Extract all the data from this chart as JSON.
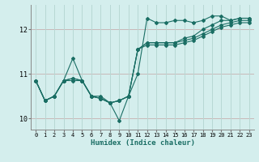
{
  "xlabel": "Humidex (Indice chaleur)",
  "background_color": "#d4eeed",
  "grid_color_h": "#c8b8b8",
  "grid_color_v": "#b8d8d4",
  "line_color": "#1a6e64",
  "xlim": [
    -0.5,
    23.5
  ],
  "ylim": [
    9.75,
    12.55
  ],
  "yticks": [
    10,
    11,
    12
  ],
  "xticks": [
    0,
    1,
    2,
    3,
    4,
    5,
    6,
    7,
    8,
    9,
    10,
    11,
    12,
    13,
    14,
    15,
    16,
    17,
    18,
    19,
    20,
    21,
    22,
    23
  ],
  "lines": [
    [
      10.85,
      10.4,
      10.5,
      10.85,
      11.35,
      10.85,
      10.5,
      10.5,
      10.35,
      9.95,
      10.5,
      11.0,
      12.25,
      12.15,
      12.15,
      12.2,
      12.2,
      12.15,
      12.2,
      12.3,
      12.3,
      12.2,
      12.25,
      12.25
    ],
    [
      10.85,
      10.4,
      10.5,
      10.85,
      10.85,
      10.85,
      10.5,
      10.45,
      10.35,
      10.4,
      10.5,
      11.55,
      11.65,
      11.65,
      11.65,
      11.65,
      11.7,
      11.75,
      11.85,
      11.95,
      12.05,
      12.1,
      12.15,
      12.15
    ],
    [
      10.85,
      10.4,
      10.5,
      10.85,
      10.9,
      10.85,
      10.5,
      10.45,
      10.35,
      10.4,
      10.5,
      11.55,
      11.7,
      11.7,
      11.7,
      11.7,
      11.75,
      11.8,
      11.9,
      12.0,
      12.1,
      12.15,
      12.2,
      12.2
    ],
    [
      10.85,
      10.4,
      10.5,
      10.85,
      10.9,
      10.85,
      10.5,
      10.45,
      10.35,
      10.4,
      10.5,
      11.55,
      11.7,
      11.7,
      11.7,
      11.7,
      11.8,
      11.85,
      12.0,
      12.1,
      12.2,
      12.2,
      12.25,
      12.25
    ]
  ]
}
